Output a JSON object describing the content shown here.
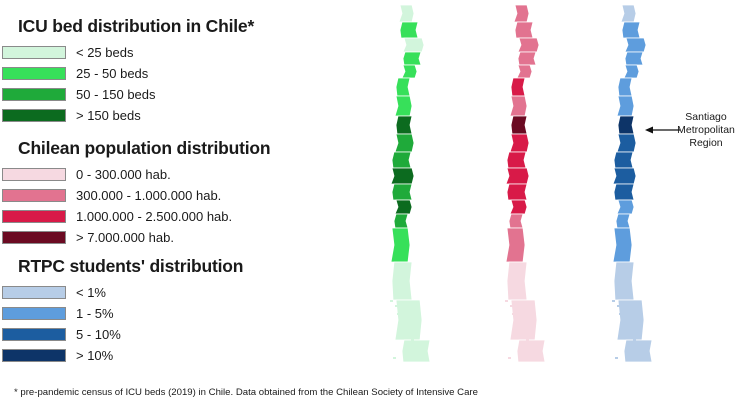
{
  "legends": [
    {
      "id": "icu",
      "title": "ICU bed distribution in Chile*",
      "items": [
        {
          "label": "< 25 beds",
          "color": "#d2f5dc"
        },
        {
          "label": "25 - 50 beds",
          "color": "#37e05a"
        },
        {
          "label": "50 - 150 beds",
          "color": "#1faa3a"
        },
        {
          "label": "> 150 beds",
          "color": "#0c6b1f"
        }
      ]
    },
    {
      "id": "pop",
      "title": "Chilean population distribution",
      "items": [
        {
          "label": "0 - 300.000 hab.",
          "color": "#f6d9e1"
        },
        {
          "label": "300.000 - 1.000.000 hab.",
          "color": "#e27390"
        },
        {
          "label": "1.000.000 - 2.500.000 hab.",
          "color": "#d81a48"
        },
        {
          "label": "> 7.000.000 hab.",
          "color": "#6b0a22"
        }
      ]
    },
    {
      "id": "rtpc",
      "title": "RTPC students' distribution",
      "items": [
        {
          "label": "< 1%",
          "color": "#b7cde7"
        },
        {
          "label": "1 - 5%",
          "color": "#5e9ddd"
        },
        {
          "label": "5 - 10%",
          "color": "#1c5da0"
        },
        {
          "label": "> 10%",
          "color": "#0d3468"
        }
      ]
    }
  ],
  "annotation": {
    "lines": [
      "Santiago",
      "Metropolitan",
      "Region"
    ]
  },
  "maps": [
    {
      "name": "icu",
      "regions": [
        "> 150 beds"
      ],
      "levels": [
        0,
        1,
        0,
        1,
        1,
        1,
        1,
        3,
        2,
        2,
        3,
        2,
        3,
        2,
        1,
        0,
        0,
        0
      ]
    },
    {
      "name": "pop",
      "levels": [
        1,
        1,
        1,
        1,
        1,
        2,
        1,
        3,
        2,
        2,
        2,
        2,
        2,
        1,
        1,
        0,
        0,
        0
      ]
    },
    {
      "name": "rtpc",
      "levels": [
        0,
        1,
        1,
        1,
        1,
        1,
        1,
        3,
        2,
        2,
        2,
        2,
        1,
        1,
        1,
        0,
        0,
        0
      ]
    }
  ],
  "footnote": "* pre-pandemic census of ICU beds (2019) in Chile. Data obtained from the Chilean Society of Intensive Care"
}
